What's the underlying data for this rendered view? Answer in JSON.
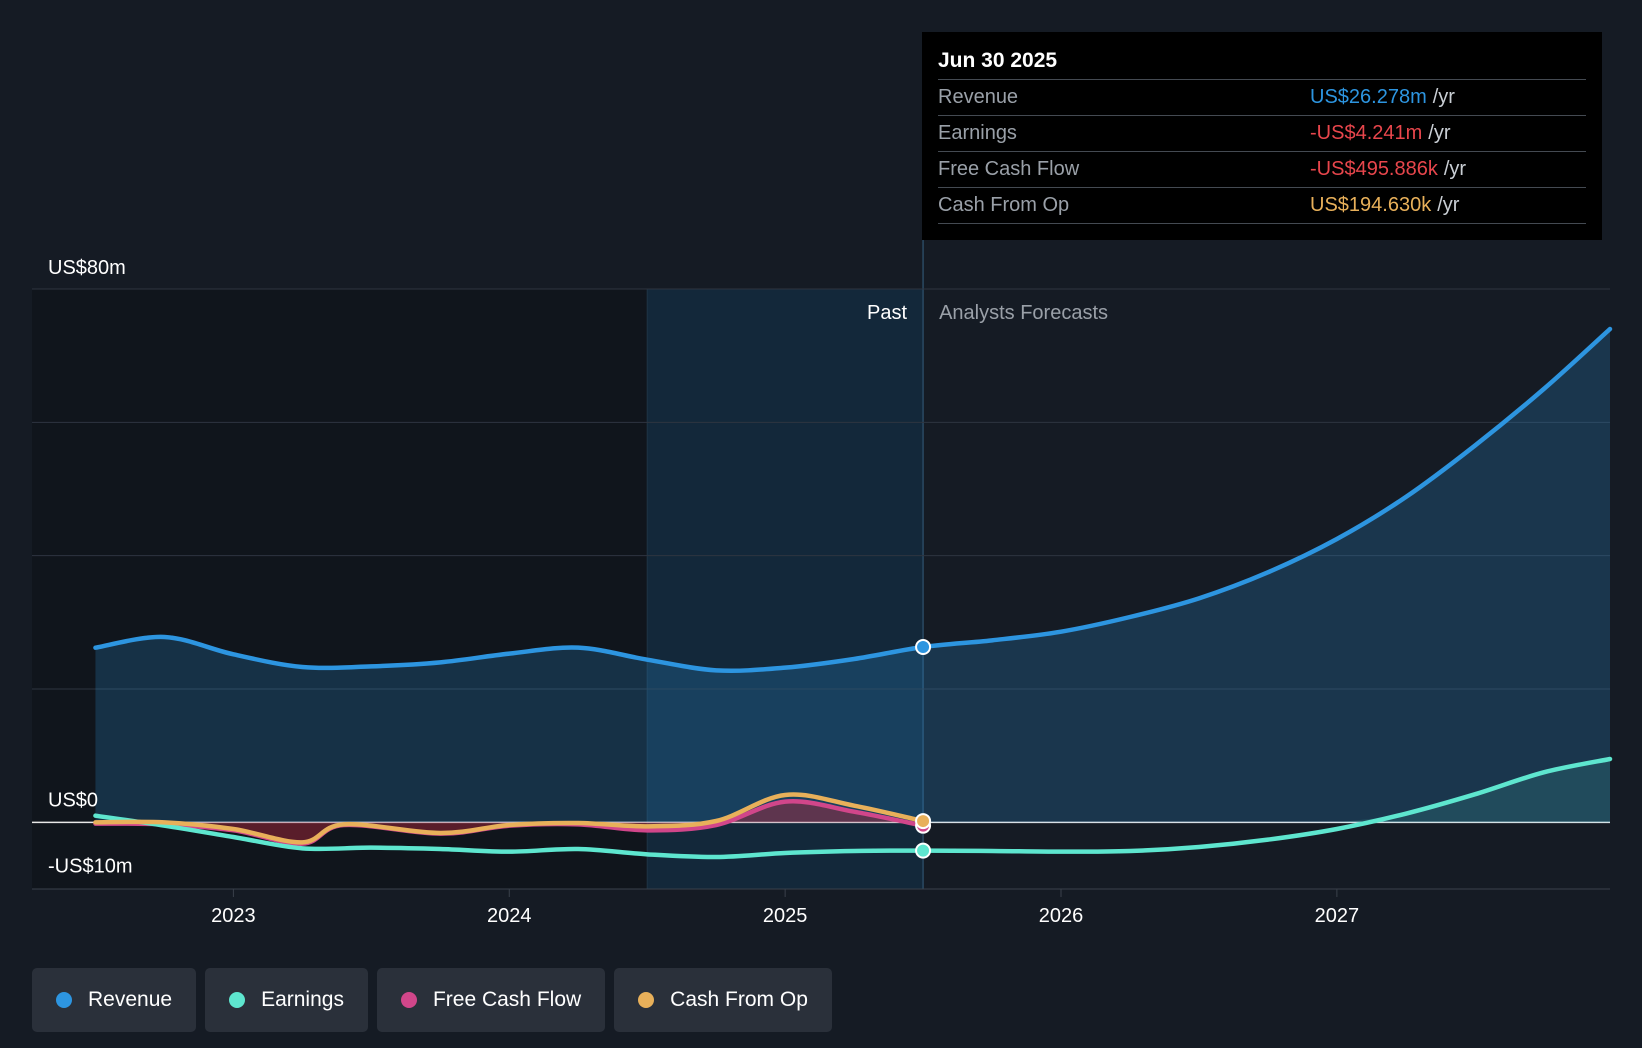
{
  "colors": {
    "revenue": "#2d95e0",
    "earnings": "#5ee6cf",
    "free_cash_flow": "#d1468a",
    "cash_from_op": "#e8b05a",
    "background": "#151b24"
  },
  "tooltip": {
    "date": "Jun 30 2025",
    "rows": [
      {
        "label": "Revenue",
        "value": "US$26.278m",
        "unit": "/yr",
        "color": "#2d95e0"
      },
      {
        "label": "Earnings",
        "value": "-US$4.241m",
        "unit": "/yr",
        "color": "#e8464c"
      },
      {
        "label": "Free Cash Flow",
        "value": "-US$495.886k",
        "unit": "/yr",
        "color": "#e8464c"
      },
      {
        "label": "Cash From Op",
        "value": "US$194.630k",
        "unit": "/yr",
        "color": "#e8b05a"
      }
    ]
  },
  "legend": [
    {
      "label": "Revenue",
      "color": "#2d95e0"
    },
    {
      "label": "Earnings",
      "color": "#5ee6cf"
    },
    {
      "label": "Free Cash Flow",
      "color": "#d1468a"
    },
    {
      "label": "Cash From Op",
      "color": "#e8b05a"
    }
  ],
  "chart_data": {
    "type": "line",
    "title": "",
    "xlabel": "",
    "ylabel": "",
    "y_axis_labels": [
      {
        "label": "US$80m",
        "value": 80
      },
      {
        "label": "US$0",
        "value": 0
      },
      {
        "label": "-US$10m",
        "value": -10
      }
    ],
    "x_ticks": [
      {
        "label": "2023",
        "value": 2023.0
      },
      {
        "label": "2024",
        "value": 2024.0
      },
      {
        "label": "2025",
        "value": 2025.0
      },
      {
        "label": "2026",
        "value": 2026.0
      },
      {
        "label": "2027",
        "value": 2027.0
      }
    ],
    "xlim": [
      2022.27,
      2027.99
    ],
    "ylim": [
      -10,
      80
    ],
    "grid_values": [
      80,
      60,
      40,
      20,
      0
    ],
    "past_label": "Past",
    "forecast_label": "Analysts Forecasts",
    "divider_x": 2025.5,
    "highlight_start": 2024.5,
    "series": [
      {
        "name": "Revenue",
        "key": "revenue",
        "color": "#2d95e0",
        "fill": true,
        "points": [
          [
            2022.5,
            26.2
          ],
          [
            2022.75,
            27.8
          ],
          [
            2023.0,
            25.2
          ],
          [
            2023.25,
            23.3
          ],
          [
            2023.5,
            23.4
          ],
          [
            2023.75,
            24.0
          ],
          [
            2024.0,
            25.3
          ],
          [
            2024.25,
            26.2
          ],
          [
            2024.5,
            24.4
          ],
          [
            2024.75,
            22.8
          ],
          [
            2025.0,
            23.2
          ],
          [
            2025.25,
            24.5
          ],
          [
            2025.5,
            26.3
          ],
          [
            2025.75,
            27.3
          ],
          [
            2026.0,
            28.6
          ],
          [
            2026.25,
            30.8
          ],
          [
            2026.5,
            33.6
          ],
          [
            2026.75,
            37.5
          ],
          [
            2027.0,
            42.5
          ],
          [
            2027.25,
            48.8
          ],
          [
            2027.5,
            56.5
          ],
          [
            2027.75,
            65.0
          ],
          [
            2027.99,
            74.0
          ]
        ]
      },
      {
        "name": "Earnings",
        "key": "earnings",
        "color": "#5ee6cf",
        "fill": false,
        "points": [
          [
            2022.5,
            1.0
          ],
          [
            2022.75,
            -0.5
          ],
          [
            2023.0,
            -2.2
          ],
          [
            2023.25,
            -3.9
          ],
          [
            2023.5,
            -3.8
          ],
          [
            2023.75,
            -4.0
          ],
          [
            2024.0,
            -4.4
          ],
          [
            2024.25,
            -4.0
          ],
          [
            2024.5,
            -4.8
          ],
          [
            2024.75,
            -5.2
          ],
          [
            2025.0,
            -4.6
          ],
          [
            2025.25,
            -4.3
          ],
          [
            2025.5,
            -4.24
          ],
          [
            2025.75,
            -4.3
          ],
          [
            2026.0,
            -4.4
          ],
          [
            2026.25,
            -4.3
          ],
          [
            2026.5,
            -3.7
          ],
          [
            2026.75,
            -2.6
          ],
          [
            2027.0,
            -1.0
          ],
          [
            2027.25,
            1.3
          ],
          [
            2027.5,
            4.2
          ],
          [
            2027.75,
            7.5
          ],
          [
            2027.99,
            9.5
          ]
        ]
      },
      {
        "name": "Free Cash Flow",
        "key": "free_cash_flow",
        "color": "#d1468a",
        "fill": true,
        "points": [
          [
            2022.5,
            -0.2
          ],
          [
            2022.75,
            -0.3
          ],
          [
            2023.0,
            -1.2
          ],
          [
            2023.25,
            -3.2
          ],
          [
            2023.4,
            -0.4
          ],
          [
            2023.75,
            -1.7
          ],
          [
            2024.0,
            -0.5
          ],
          [
            2024.25,
            -0.3
          ],
          [
            2024.5,
            -1.2
          ],
          [
            2024.75,
            -0.4
          ],
          [
            2025.0,
            3.1
          ],
          [
            2025.25,
            1.6
          ],
          [
            2025.5,
            -0.5
          ]
        ]
      },
      {
        "name": "Cash From Op",
        "key": "cash_from_op",
        "color": "#e8b05a",
        "fill": false,
        "points": [
          [
            2022.5,
            0.0
          ],
          [
            2022.75,
            0.0
          ],
          [
            2023.0,
            -1.0
          ],
          [
            2023.25,
            -3.0
          ],
          [
            2023.4,
            -0.3
          ],
          [
            2023.75,
            -1.6
          ],
          [
            2024.0,
            -0.4
          ],
          [
            2024.25,
            -0.1
          ],
          [
            2024.5,
            -0.6
          ],
          [
            2024.75,
            0.2
          ],
          [
            2025.0,
            4.1
          ],
          [
            2025.25,
            2.5
          ],
          [
            2025.5,
            0.19
          ]
        ]
      }
    ]
  }
}
